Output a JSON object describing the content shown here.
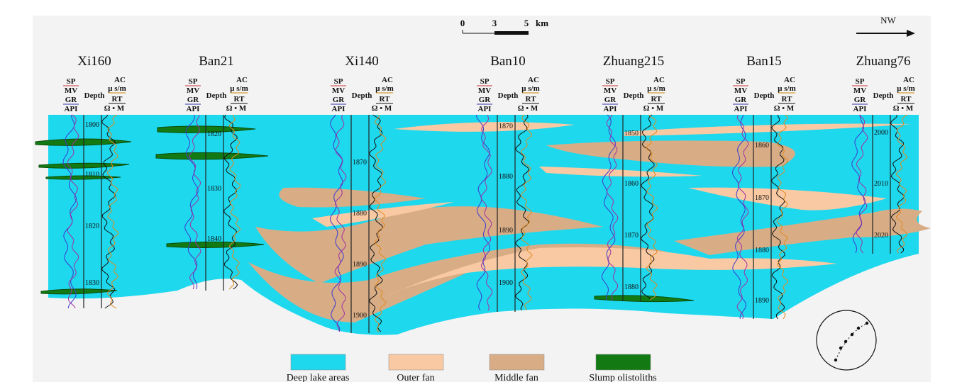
{
  "scale_bar": {
    "ticks": [
      0,
      3,
      5
    ],
    "unit": "km"
  },
  "direction": "NW",
  "log_header": {
    "sp": "SP",
    "mv": "MV",
    "gr": "GR",
    "api": "API",
    "depth": "Depth",
    "ac": "AC",
    "ac_unit": "μ s/m",
    "rt": "RT",
    "rt_unit": "Ω • M"
  },
  "wells": [
    {
      "name": "Xi160",
      "depths": [
        1800,
        1810,
        1820,
        1830
      ]
    },
    {
      "name": "Ban21",
      "depths": [
        1820,
        1830,
        1840
      ]
    },
    {
      "name": "Xi140",
      "depths": [
        1870,
        1880,
        1890,
        1900
      ]
    },
    {
      "name": "Ban10",
      "depths": [
        1870,
        1880,
        1890,
        1900
      ]
    },
    {
      "name": "Zhuang215",
      "depths": [
        1850,
        1860,
        1870,
        1880
      ]
    },
    {
      "name": "Ban15",
      "depths": [
        1860,
        1870,
        1880,
        1890
      ]
    },
    {
      "name": "Zhuang76",
      "depths": [
        2000,
        2010,
        2020
      ]
    }
  ],
  "legend": [
    {
      "label": "Deep lake areas",
      "color": "#1ed8ee"
    },
    {
      "label": "Outer  fan",
      "color": "#f9c9a3"
    },
    {
      "label": "Middle fan",
      "color": "#d8ad86"
    },
    {
      "label": "Slump olistoliths",
      "color": "#137a13"
    }
  ]
}
